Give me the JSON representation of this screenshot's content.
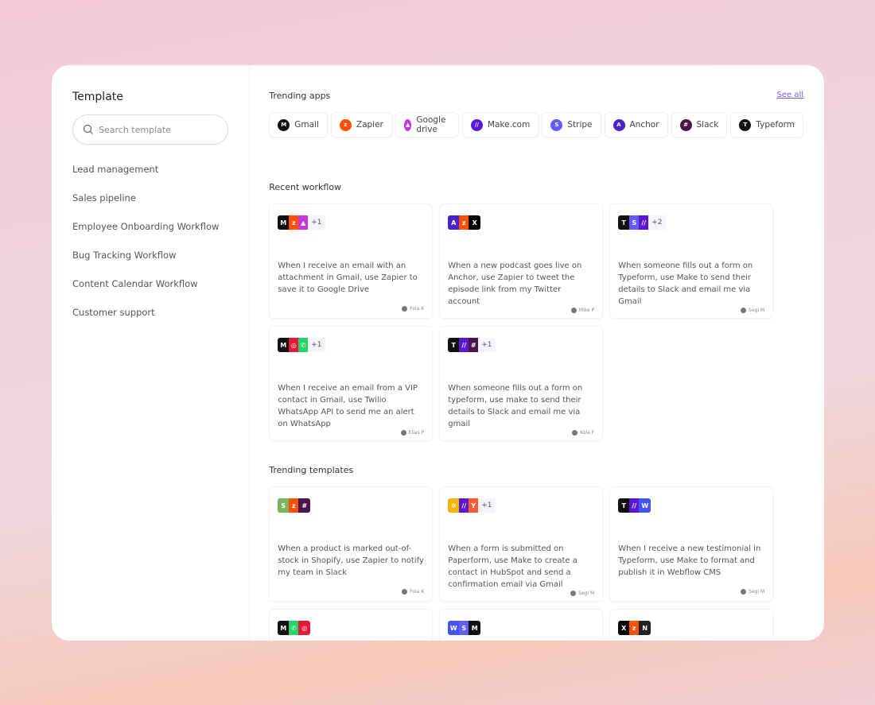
{
  "sidebar": {
    "title": "Template",
    "search_placeholder": "Search template",
    "items": [
      "Lead management",
      "Sales pipeline",
      "Employee Onboarding Workflow",
      "Bug Tracking Workflow",
      "Content Calendar Workflow",
      "Customer support"
    ]
  },
  "colors": {
    "gmail": "#111111",
    "zapier": "#ff4f00",
    "gdrive": "#c23ad8",
    "make": "#5b16d6",
    "stripe": "#635bff",
    "anchor": "#4b22c9",
    "slack": "#4a154b",
    "typeform": "#111111",
    "x": "#000000",
    "twilio": "#e3183b",
    "whatsapp": "#25d366",
    "shopify": "#7ab55c",
    "paperform": "#f4b400",
    "hubspot": "#ff5c35",
    "webflow": "#4353ff",
    "notion": "#222222",
    "accent": "#6b5cf5"
  },
  "glyphs": {
    "gmail": "M",
    "zapier": "z",
    "gdrive": "▲",
    "make": "//",
    "stripe": "S",
    "anchor": "A",
    "slack": "#",
    "typeform": "T",
    "x": "X",
    "twilio": "◎",
    "whatsapp": "✆",
    "shopify": "S",
    "paperform": "✲",
    "hubspot": "Y",
    "webflow": "W",
    "notion": "N"
  },
  "trending_apps": {
    "title": "Trending apps",
    "see_all": "See all",
    "apps": [
      {
        "label": "Gmail",
        "icon": "gmail"
      },
      {
        "label": "Zapier",
        "icon": "zapier"
      },
      {
        "label": "Google drive",
        "icon": "gdrive"
      },
      {
        "label": "Make.com",
        "icon": "make"
      },
      {
        "label": "Stripe",
        "icon": "stripe"
      },
      {
        "label": "Anchor",
        "icon": "anchor"
      },
      {
        "label": "Slack",
        "icon": "slack"
      },
      {
        "label": "Typeform",
        "icon": "typeform"
      }
    ]
  },
  "recent": {
    "title": "Recent workflow",
    "cards": [
      {
        "icons": [
          "gmail",
          "zapier",
          "gdrive"
        ],
        "more": "+1",
        "desc": "When I receive an email with an attachment in Gmail, use Zapier to save it to Google Drive",
        "author": "Foia K"
      },
      {
        "icons": [
          "anchor",
          "zapier",
          "x"
        ],
        "more": "",
        "desc": "When a new podcast goes live on Anchor, use Zapier to tweet the episode link from my Twitter account",
        "author": "Mike P"
      },
      {
        "icons": [
          "typeform",
          "stripe",
          "make"
        ],
        "more": "+2",
        "desc": "When someone fills out a form on Typeform, use Make to send their details to Slack and email me via Gmail",
        "author": "Segi M"
      },
      {
        "icons": [
          "gmail",
          "twilio",
          "whatsapp"
        ],
        "more": "+1",
        "desc": "When I receive an email from a VIP contact in Gmail, use Twilio WhatsApp API to send me an alert on WhatsApp",
        "author": "Elias P"
      },
      {
        "icons": [
          "typeform",
          "make",
          "slack"
        ],
        "more": "+1",
        "desc": "When someone fills out a form on typeform, use make to send their details to Slack and email me via  gmail",
        "author": "Kola F"
      }
    ]
  },
  "trending_templates": {
    "title": "Trending templates",
    "cards": [
      {
        "icons": [
          "shopify",
          "zapier",
          "slack"
        ],
        "more": "",
        "desc": "When a product is marked out-of-stock in Shopify, use Zapier to notify my team in Slack",
        "author": "Foia K"
      },
      {
        "icons": [
          "paperform",
          "make",
          "hubspot"
        ],
        "more": "+1",
        "desc": "When a form is submitted on Paperform, use Make to create a contact in HubSpot and send a confirmation email via Gmail",
        "author": "Segi M"
      },
      {
        "icons": [
          "typeform",
          "make",
          "webflow"
        ],
        "more": "",
        "desc": "When I receive a new testimonial in Typeform, use Make to format and publish it in Webflow CMS",
        "author": "Segi M"
      },
      {
        "icons": [
          "gmail",
          "whatsapp",
          "twilio"
        ],
        "more": "",
        "desc": "",
        "author": ""
      },
      {
        "icons": [
          "webflow",
          "stripe",
          "gmail"
        ],
        "more": "",
        "desc": "",
        "author": ""
      },
      {
        "icons": [
          "x",
          "zapier",
          "notion"
        ],
        "more": "",
        "desc": "",
        "author": ""
      }
    ]
  }
}
